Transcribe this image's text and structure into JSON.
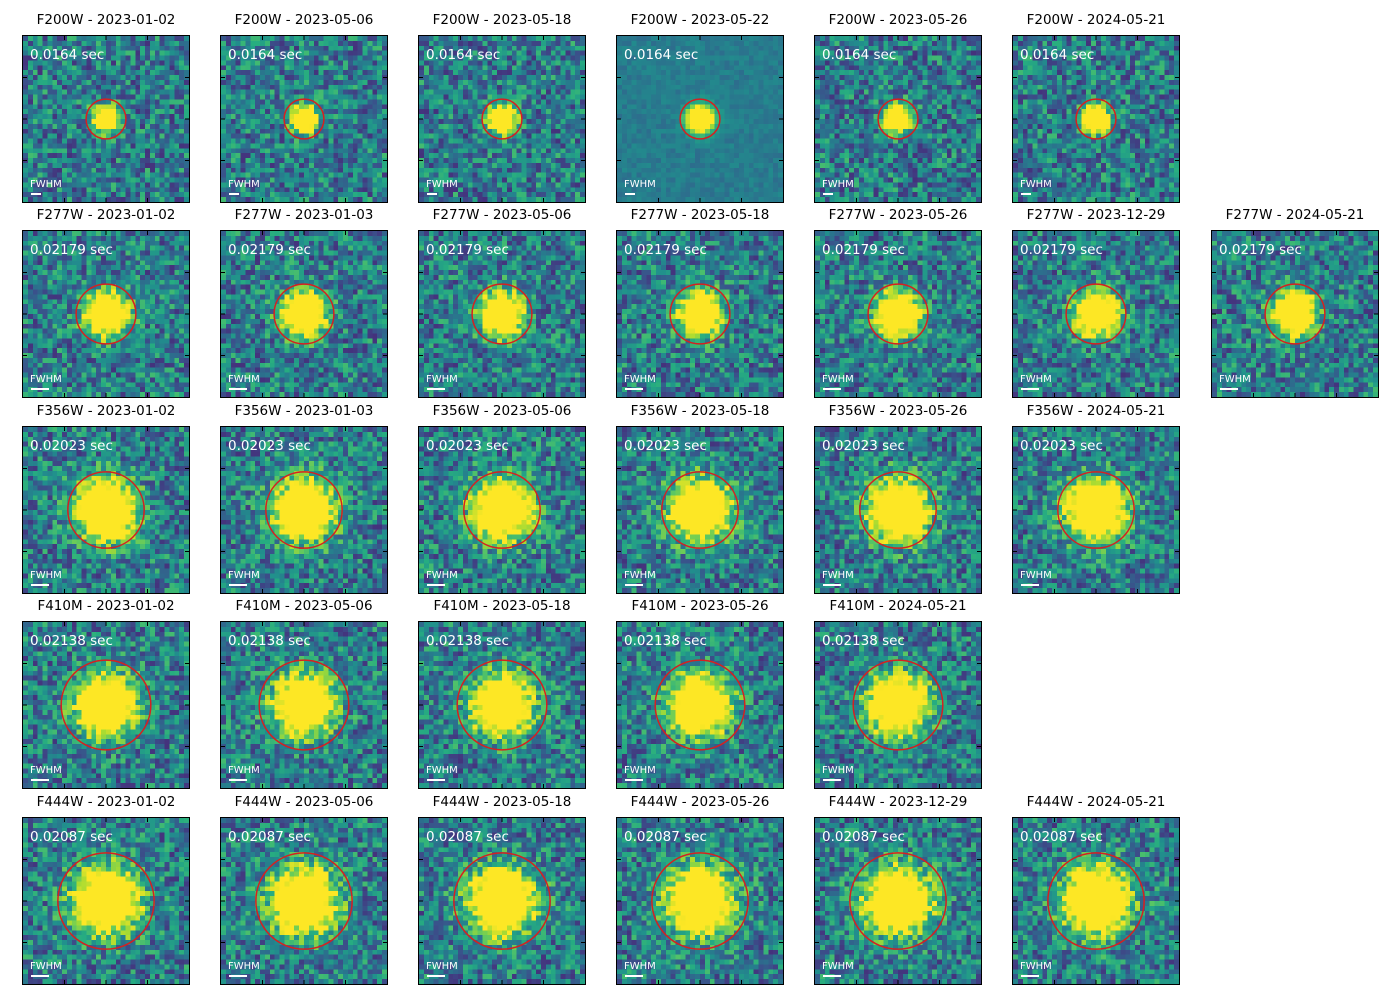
{
  "fwhm_label": "FWHM",
  "circle_color": "#d62020",
  "colormap": "viridis",
  "rows": [
    {
      "exposure": "0.0164 sec",
      "radius_rel": 0.12,
      "core_rel": 0.05,
      "panels": [
        {
          "title": "F200W - 2023-01-02"
        },
        {
          "title": "F200W - 2023-05-06"
        },
        {
          "title": "F200W - 2023-05-18"
        },
        {
          "title": "F200W - 2023-05-22"
        },
        {
          "title": "F200W - 2023-05-26"
        },
        {
          "title": "F200W - 2024-05-21"
        }
      ]
    },
    {
      "exposure": "0.02179 sec",
      "radius_rel": 0.18,
      "core_rel": 0.08,
      "panels": [
        {
          "title": "F277W - 2023-01-02"
        },
        {
          "title": "F277W - 2023-01-03"
        },
        {
          "title": "F277W - 2023-05-06"
        },
        {
          "title": "F277W - 2023-05-18"
        },
        {
          "title": "F277W - 2023-05-26"
        },
        {
          "title": "F277W - 2023-12-29"
        },
        {
          "title": "F277W - 2024-05-21"
        }
      ]
    },
    {
      "exposure": "0.02023 sec",
      "radius_rel": 0.23,
      "core_rel": 0.11,
      "panels": [
        {
          "title": "F356W - 2023-01-02"
        },
        {
          "title": "F356W - 2023-01-03"
        },
        {
          "title": "F356W - 2023-05-06"
        },
        {
          "title": "F356W - 2023-05-18"
        },
        {
          "title": "F356W - 2023-05-26"
        },
        {
          "title": "F356W - 2024-05-21"
        }
      ]
    },
    {
      "exposure": "0.02138 sec",
      "radius_rel": 0.27,
      "core_rel": 0.11,
      "panels": [
        {
          "title": "F410M - 2023-01-02"
        },
        {
          "title": "F410M - 2023-05-06"
        },
        {
          "title": "F410M - 2023-05-18"
        },
        {
          "title": "F410M - 2023-05-26"
        },
        {
          "title": "F410M - 2024-05-21"
        }
      ]
    },
    {
      "exposure": "0.02087 sec",
      "radius_rel": 0.29,
      "core_rel": 0.12,
      "panels": [
        {
          "title": "F444W - 2023-01-02"
        },
        {
          "title": "F444W - 2023-05-06"
        },
        {
          "title": "F444W - 2023-05-18"
        },
        {
          "title": "F444W - 2023-05-26"
        },
        {
          "title": "F444W - 2023-12-29"
        },
        {
          "title": "F444W - 2024-05-21"
        }
      ]
    }
  ]
}
